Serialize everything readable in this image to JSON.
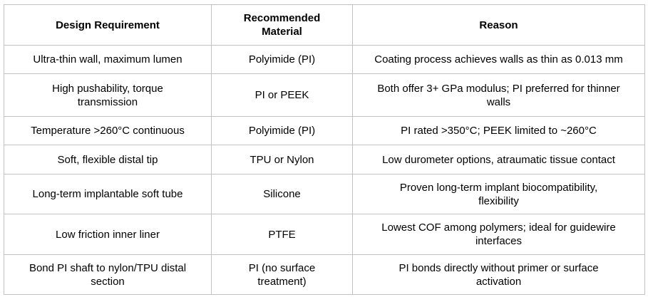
{
  "table": {
    "headers": {
      "requirement": "Design Requirement",
      "material": "Recommended\nMaterial",
      "reason": "Reason"
    },
    "rows": [
      {
        "requirement": "Ultra-thin wall, maximum lumen",
        "material": "Polyimide (PI)",
        "reason": "Coating process achieves walls as thin as 0.013 mm"
      },
      {
        "requirement": "High pushability, torque\ntransmission",
        "material": "PI or PEEK",
        "reason": "Both offer 3+ GPa modulus; PI preferred for thinner\nwalls"
      },
      {
        "requirement": "Temperature >260°C continuous",
        "material": "Polyimide (PI)",
        "reason": "PI rated >350°C; PEEK limited to ~260°C"
      },
      {
        "requirement": "Soft, flexible distal tip",
        "material": "TPU or Nylon",
        "reason": "Low durometer options, atraumatic tissue contact"
      },
      {
        "requirement": "Long-term implantable soft tube",
        "material": "Silicone",
        "reason": "Proven long-term implant biocompatibility,\nflexibility"
      },
      {
        "requirement": "Low friction inner liner",
        "material": "PTFE",
        "reason": "Lowest COF among polymers; ideal for guidewire\ninterfaces"
      },
      {
        "requirement": "Bond PI shaft to nylon/TPU distal\nsection",
        "material": "PI (no surface\ntreatment)",
        "reason": "PI bonds directly without primer or surface\nactivation"
      }
    ]
  },
  "colors": {
    "border": "#c2c2c2",
    "text": "#000000",
    "background": "#ffffff"
  }
}
